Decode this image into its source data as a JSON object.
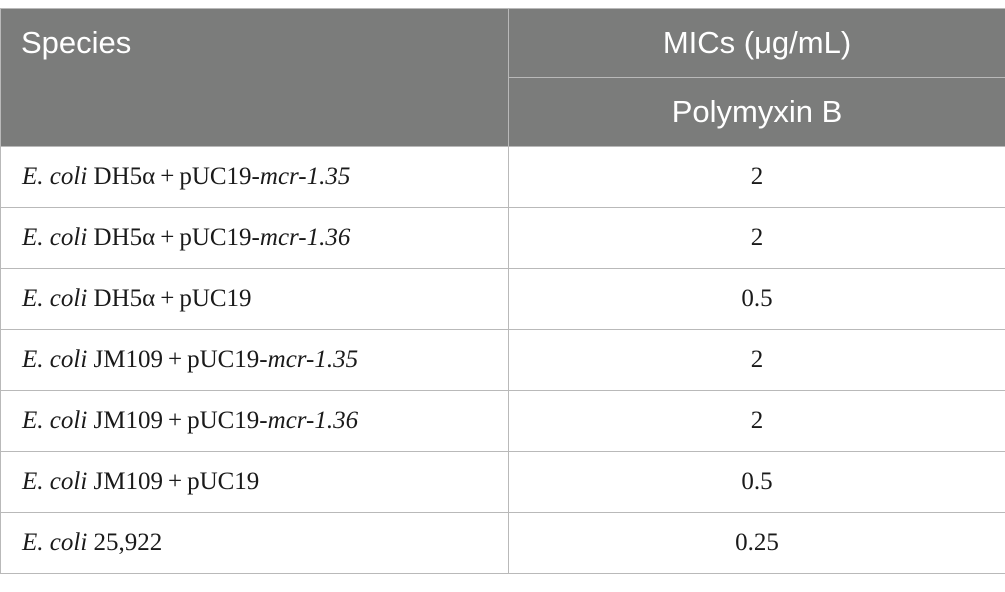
{
  "header": {
    "species_label": "Species",
    "group_label": "MICs (μg/mL)",
    "drug_label": "Polymyxin B"
  },
  "rows": [
    {
      "genus": "E. coli",
      "strain": " DH5α + pUC19-",
      "gene": "mcr-1.35",
      "mic": "2"
    },
    {
      "genus": "E. coli",
      "strain": " DH5α + pUC19-",
      "gene": "mcr-1.36",
      "mic": "2"
    },
    {
      "genus": "E. coli",
      "strain": " DH5α + pUC19",
      "gene": "",
      "mic": "0.5"
    },
    {
      "genus": "E. coli",
      "strain": " JM109 + pUC19-",
      "gene": "mcr-1.35",
      "mic": "2"
    },
    {
      "genus": "E. coli",
      "strain": " JM109 + pUC19-",
      "gene": "mcr-1.36",
      "mic": "2"
    },
    {
      "genus": "E. coli",
      "strain": " JM109 + pUC19",
      "gene": "",
      "mic": "0.5"
    },
    {
      "genus": "E. coli",
      "strain": " 25,922",
      "gene": "",
      "mic": "0.25"
    }
  ]
}
